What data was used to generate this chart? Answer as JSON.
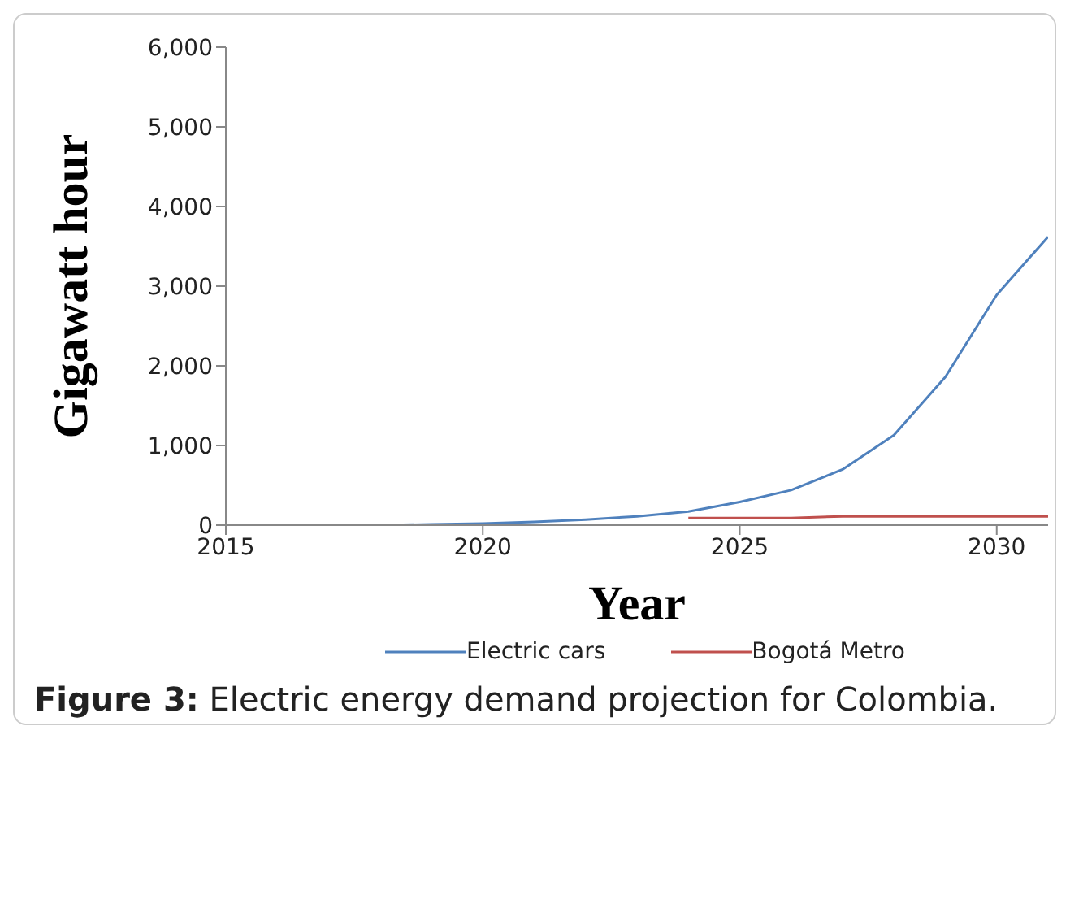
{
  "chart_data": {
    "type": "line",
    "xlabel": "Year",
    "ylabel": "Gigawatt hour",
    "x": [
      2017,
      2018,
      2019,
      2020,
      2021,
      2022,
      2023,
      2024,
      2025,
      2026,
      2027,
      2028,
      2029,
      2030,
      2031
    ],
    "series": [
      {
        "name": "Electric cars",
        "color": "#4f81bd",
        "values": [
          0,
          0,
          10,
          20,
          40,
          70,
          110,
          170,
          290,
          440,
          700,
          1130,
          1860,
          2890,
          3620
        ]
      },
      {
        "name": "Bogotá Metro",
        "color": "#c0504d",
        "values": [
          null,
          null,
          null,
          null,
          null,
          null,
          null,
          90,
          90,
          90,
          110,
          110,
          110,
          110,
          110
        ]
      }
    ],
    "xlim": [
      2015,
      2031
    ],
    "xticks": [
      2015,
      2020,
      2025,
      2030
    ],
    "ylim": [
      0,
      6000
    ],
    "yticks": [
      0,
      {
        "value": 1000,
        "label": "1,000"
      },
      {
        "value": 2000,
        "label": "2,000"
      },
      {
        "value": 3000,
        "label": "3,000"
      },
      {
        "value": 4000,
        "label": "4,000"
      },
      {
        "value": 5000,
        "label": "5,000"
      },
      {
        "value": 6000,
        "label": "6,000"
      }
    ],
    "grid": false,
    "legend": "bottom",
    "marker": "none",
    "line_style": "solid",
    "annotations": [
      "Figure 3: Electric energy demand projection for Colombia."
    ]
  }
}
